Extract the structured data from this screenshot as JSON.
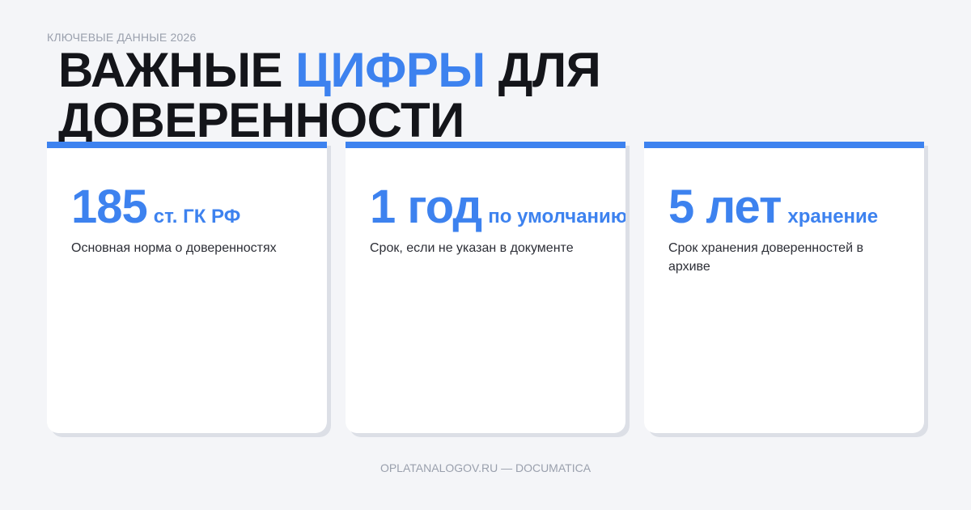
{
  "header": {
    "eyebrow": "КЛЮЧЕВЫЕ ДАННЫЕ 2026",
    "title_before": "ВАЖНЫЕ",
    "title_highlight": "ЦИФРЫ",
    "title_after": "ДЛЯ ДОВЕРЕННОСТИ"
  },
  "cards": [
    {
      "number": "185",
      "unit": "ст. ГК РФ",
      "description": "Основная норма о доверенностях"
    },
    {
      "number": "1 год",
      "unit": "по умолчанию",
      "description": "Срок, если не указан в документе"
    },
    {
      "number": "5 лет",
      "unit": "хранение",
      "description": "Срок хранения доверенностей в архиве"
    }
  ],
  "footer": "OPLATANALOGOV.RU — DOCUMATICA"
}
